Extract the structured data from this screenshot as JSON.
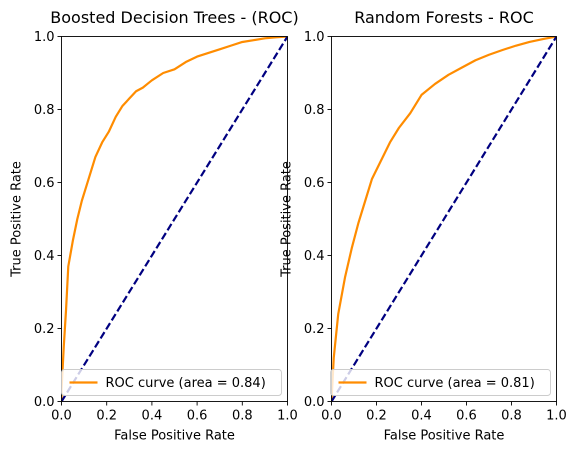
{
  "chart_data": [
    {
      "type": "line",
      "title": "Boosted Decision Trees - (ROC)",
      "xlabel": "False Positive Rate",
      "ylabel": "True Positive Rate",
      "xlim": [
        0.0,
        1.0
      ],
      "ylim": [
        0.0,
        1.0
      ],
      "x_ticks": [
        "0.0",
        "0.2",
        "0.4",
        "0.6",
        "0.8",
        "1.0"
      ],
      "y_ticks": [
        "0.0",
        "0.2",
        "0.4",
        "0.6",
        "0.8",
        "1.0"
      ],
      "legend_position": "lower-right",
      "series": [
        {
          "name": "ROC curve (area = 0.84)",
          "color": "#ff8c00",
          "style": "solid",
          "x": [
            0.0,
            0.0,
            0.01,
            0.02,
            0.03,
            0.05,
            0.07,
            0.09,
            0.11,
            0.13,
            0.15,
            0.18,
            0.21,
            0.24,
            0.27,
            0.3,
            0.33,
            0.36,
            0.38,
            0.4,
            0.45,
            0.5,
            0.55,
            0.6,
            0.65,
            0.7,
            0.75,
            0.8,
            0.85,
            0.9,
            0.95,
            1.0
          ],
          "y": [
            0.0,
            0.03,
            0.15,
            0.25,
            0.37,
            0.44,
            0.5,
            0.55,
            0.59,
            0.63,
            0.67,
            0.71,
            0.74,
            0.78,
            0.81,
            0.83,
            0.85,
            0.86,
            0.87,
            0.88,
            0.9,
            0.91,
            0.93,
            0.945,
            0.955,
            0.965,
            0.975,
            0.985,
            0.99,
            0.995,
            0.998,
            1.0
          ]
        },
        {
          "name": "",
          "color": "#000080",
          "style": "dashed",
          "x": [
            0.0,
            1.0
          ],
          "y": [
            0.0,
            1.0
          ]
        }
      ]
    },
    {
      "type": "line",
      "title": "Random Forests - ROC",
      "xlabel": "False Positive Rate",
      "ylabel": "True Positive Rate",
      "xlim": [
        0.0,
        1.0
      ],
      "ylim": [
        0.0,
        1.0
      ],
      "x_ticks": [
        "0.0",
        "0.2",
        "0.4",
        "0.6",
        "0.8",
        "1.0"
      ],
      "y_ticks": [
        "0.0",
        "0.2",
        "0.4",
        "0.6",
        "0.8",
        "1.0"
      ],
      "legend_position": "lower-right",
      "series": [
        {
          "name": "ROC curve (area = 0.81)",
          "color": "#ff8c00",
          "style": "solid",
          "x": [
            0.0,
            0.01,
            0.03,
            0.06,
            0.09,
            0.12,
            0.15,
            0.18,
            0.22,
            0.26,
            0.3,
            0.35,
            0.4,
            0.46,
            0.52,
            0.58,
            0.64,
            0.7,
            0.76,
            0.82,
            0.88,
            0.94,
            1.0
          ],
          "y": [
            0.0,
            0.12,
            0.24,
            0.34,
            0.42,
            0.49,
            0.55,
            0.61,
            0.66,
            0.71,
            0.75,
            0.79,
            0.84,
            0.87,
            0.895,
            0.915,
            0.935,
            0.95,
            0.963,
            0.975,
            0.985,
            0.993,
            1.0
          ]
        },
        {
          "name": "",
          "color": "#000080",
          "style": "dashed",
          "x": [
            0.0,
            1.0
          ],
          "y": [
            0.0,
            1.0
          ]
        }
      ]
    }
  ]
}
